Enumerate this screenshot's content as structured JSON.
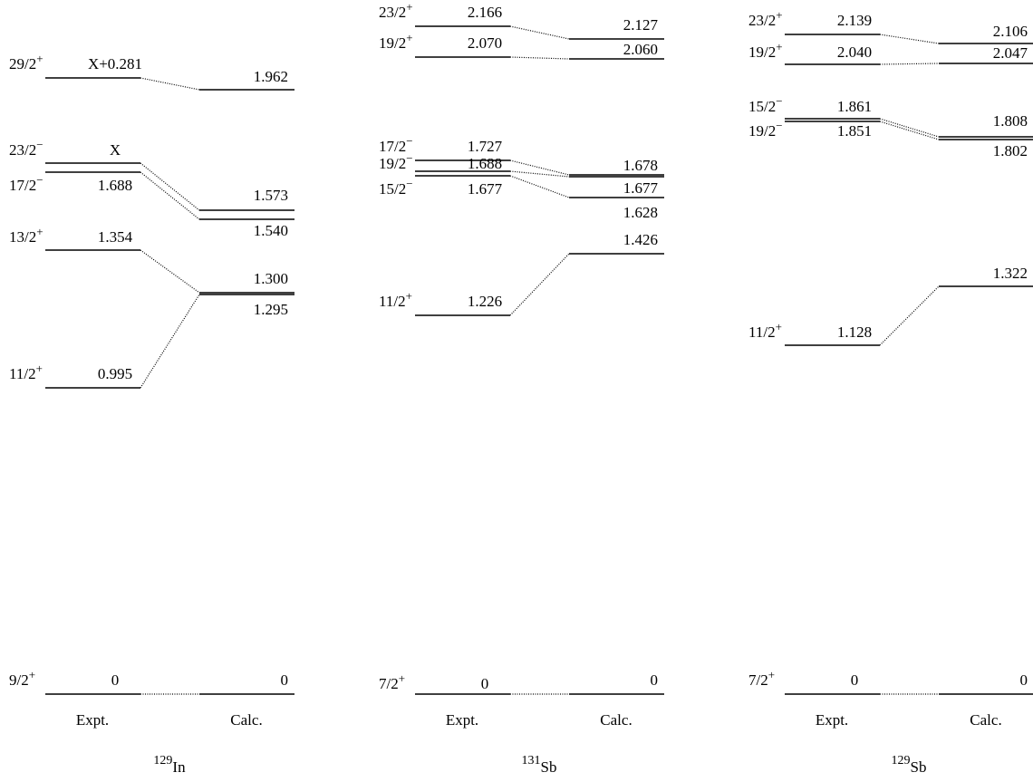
{
  "panels": [
    {
      "nucleus": {
        "mass": "129",
        "symbol": "In"
      },
      "expt_label": "Expt.",
      "calc_label": "Calc.",
      "expt": [
        {
          "spin": "29/2",
          "parity": "+",
          "energy": "X+0.281"
        },
        {
          "spin": "23/2",
          "parity": "−",
          "energy": "X"
        },
        {
          "spin": "17/2",
          "parity": "−",
          "energy": "1.688"
        },
        {
          "spin": "13/2",
          "parity": "+",
          "energy": "1.354"
        },
        {
          "spin": "11/2",
          "parity": "+",
          "energy": "0.995"
        },
        {
          "spin": "9/2",
          "parity": "+",
          "energy": "0"
        }
      ],
      "calc": [
        "1.962",
        "1.573",
        "1.540",
        "1.300",
        "1.295",
        "0"
      ]
    },
    {
      "nucleus": {
        "mass": "131",
        "symbol": "Sb"
      },
      "expt_label": "Expt.",
      "calc_label": "Calc.",
      "expt": [
        {
          "spin": "23/2",
          "parity": "+",
          "energy": "2.166"
        },
        {
          "spin": "19/2",
          "parity": "+",
          "energy": "2.070"
        },
        {
          "spin": "17/2",
          "parity": "−",
          "energy": "1.727"
        },
        {
          "spin": "19/2",
          "parity": "−",
          "energy": "1.688"
        },
        {
          "spin": "15/2",
          "parity": "−",
          "energy": "1.677"
        },
        {
          "spin": "11/2",
          "parity": "+",
          "energy": "1.226"
        },
        {
          "spin": "7/2",
          "parity": "+",
          "energy": "0"
        }
      ],
      "calc": [
        "2.127",
        "2.060",
        "1.678",
        "1.677",
        "1.628",
        "1.426",
        "0"
      ]
    },
    {
      "nucleus": {
        "mass": "129",
        "symbol": "Sb"
      },
      "expt_label": "Expt.",
      "calc_label": "Calc.",
      "expt": [
        {
          "spin": "23/2",
          "parity": "+",
          "energy": "2.139"
        },
        {
          "spin": "19/2",
          "parity": "+",
          "energy": "2.040"
        },
        {
          "spin": "15/2",
          "parity": "−",
          "energy": "1.861"
        },
        {
          "spin": "19/2",
          "parity": "−",
          "energy": "1.851"
        },
        {
          "spin": "11/2",
          "parity": "+",
          "energy": "1.128"
        },
        {
          "spin": "7/2",
          "parity": "+",
          "energy": "0"
        }
      ],
      "calc": [
        "2.106",
        "2.047",
        "1.808",
        "1.802",
        "1.322",
        "0"
      ]
    }
  ]
}
